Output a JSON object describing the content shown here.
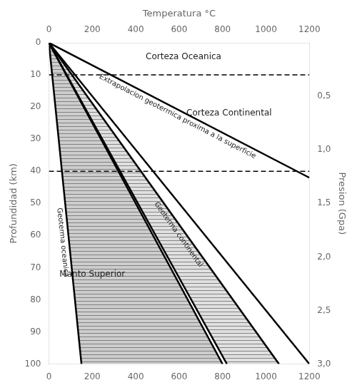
{
  "chart_data": {
    "type": "line",
    "xlabel": "Temperatura °C",
    "ylabel": "Profundidad (km)",
    "y2label": "Presion (Gpa)",
    "xlim": [
      0,
      1200
    ],
    "xticks": [
      0,
      200,
      400,
      600,
      800,
      1000,
      1200
    ],
    "ylim": [
      100,
      0
    ],
    "yticks": [
      0,
      10,
      20,
      30,
      40,
      50,
      60,
      70,
      80,
      90,
      100
    ],
    "y2lim": [
      3.0,
      0.0
    ],
    "y2ticks": [
      {
        "value": 0.5,
        "label": "0,5"
      },
      {
        "value": 1.0,
        "label": "1,0"
      },
      {
        "value": 1.5,
        "label": "1,5"
      },
      {
        "value": 2.0,
        "label": "2,0"
      },
      {
        "value": 2.5,
        "label": "2,5"
      },
      {
        "value": 3.0,
        "label": "3,0"
      }
    ],
    "grid": false,
    "series": [
      {
        "x": [
          0,
          150
        ],
        "values": [
          0,
          100
        ],
        "color": "#000000"
      },
      {
        "x": [
          0,
          800
        ],
        "values": [
          0,
          100
        ],
        "color": "#000000"
      },
      {
        "x": [
          0,
          820
        ],
        "values": [
          0,
          100
        ],
        "color": "#000000"
      },
      {
        "x": [
          0,
          1060
        ],
        "values": [
          0,
          100
        ],
        "color": "#000000"
      },
      {
        "x": [
          0,
          1200
        ],
        "values": [
          0,
          100
        ],
        "color": "#000000"
      },
      {
        "x": [
          0,
          1200
        ],
        "values": [
          0,
          42
        ],
        "color": "#000000"
      }
    ],
    "areas": [
      {
        "color": "#c0c0c0",
        "bounds": [
          {
            "x": [
              0,
              150
            ],
            "values": [
              0,
              100
            ]
          },
          {
            "x": [
              0,
              800
            ],
            "values": [
              0,
              100
            ]
          }
        ]
      },
      {
        "color": "#d8d8d8",
        "bounds": [
          {
            "x": [
              0,
              820
            ],
            "values": [
              0,
              100
            ]
          },
          {
            "x": [
              0,
              1060
            ],
            "values": [
              0,
              100
            ]
          }
        ]
      }
    ],
    "hlines": [
      {
        "value": 10,
        "line_style": "dashed",
        "color": "#000000"
      },
      {
        "value": 40,
        "line_style": "dashed",
        "color": "#000000"
      }
    ],
    "annotations": [
      {
        "text": "Corteza Oceanica",
        "x": 620,
        "y": 4.5
      },
      {
        "text": "Corteza Continental",
        "x": 830,
        "y": 22
      },
      {
        "text": "Manto Superior",
        "x": 200,
        "y": 72
      },
      {
        "text": "Geoterma oceanica",
        "x": 85,
        "y": 62
      },
      {
        "text": "Geoterma continental",
        "x": 590,
        "y": 60
      },
      {
        "text": "Extrapolacion geotermica proxima a la superficie",
        "x": 600,
        "y": 22
      }
    ]
  }
}
